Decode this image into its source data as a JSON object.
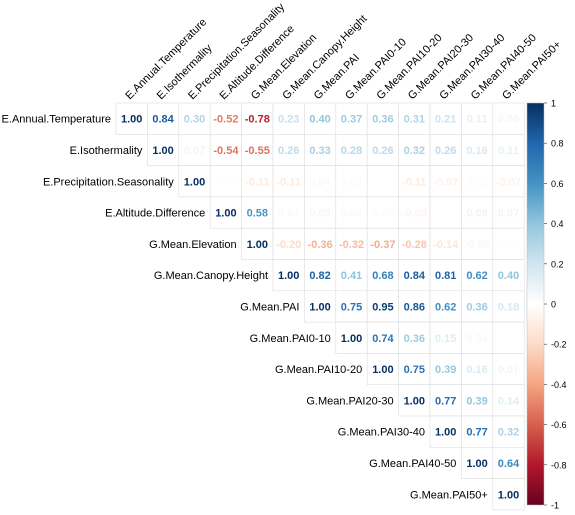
{
  "chart_data": {
    "type": "heatmap",
    "subtype": "upper-triangular correlation matrix",
    "title": "",
    "variables": [
      "E.Annual.Temperature",
      "E.Isothermality",
      "E.Precipitation.Seasonality",
      "E.Altitude.Difference",
      "G.Mean.Elevation",
      "G.Mean.Canopy.Height",
      "G.Mean.PAI",
      "G.Mean.PAI0-10",
      "G.Mean.PAI10-20",
      "G.Mean.PAI20-30",
      "G.Mean.PAI30-40",
      "G.Mean.PAI40-50",
      "G.Mean.PAI50+"
    ],
    "matrix": [
      [
        1.0,
        0.84,
        0.3,
        -0.52,
        -0.78,
        0.23,
        0.4,
        0.37,
        0.36,
        0.31,
        0.21,
        0.11,
        0.06
      ],
      [
        null,
        1.0,
        0.07,
        -0.54,
        -0.55,
        0.26,
        0.33,
        0.28,
        0.26,
        0.32,
        0.26,
        0.16,
        0.11
      ],
      [
        null,
        null,
        1.0,
        0.01,
        -0.11,
        -0.11,
        0.04,
        0.03,
        0.0,
        -0.11,
        -0.07,
        0.02,
        -0.07
      ],
      [
        null,
        null,
        null,
        1.0,
        0.58,
        0.04,
        0.05,
        0.04,
        0.03,
        -0.06,
        0.0,
        0.08,
        0.07
      ],
      [
        null,
        null,
        null,
        null,
        1.0,
        -0.2,
        -0.36,
        -0.32,
        -0.37,
        -0.28,
        -0.14,
        -0.05,
        -0.01
      ],
      [
        null,
        null,
        null,
        null,
        null,
        1.0,
        0.82,
        0.41,
        0.68,
        0.84,
        0.81,
        0.62,
        0.4
      ],
      [
        null,
        null,
        null,
        null,
        null,
        null,
        1.0,
        0.75,
        0.95,
        0.86,
        0.62,
        0.36,
        0.18
      ],
      [
        null,
        null,
        null,
        null,
        null,
        null,
        null,
        1.0,
        0.74,
        0.36,
        0.15,
        0.04,
        0.0
      ],
      [
        null,
        null,
        null,
        null,
        null,
        null,
        null,
        null,
        1.0,
        0.75,
        0.39,
        0.16,
        0.07
      ],
      [
        null,
        null,
        null,
        null,
        null,
        null,
        null,
        null,
        null,
        1.0,
        0.77,
        0.39,
        0.14
      ],
      [
        null,
        null,
        null,
        null,
        null,
        null,
        null,
        null,
        null,
        null,
        1.0,
        0.77,
        0.32
      ],
      [
        null,
        null,
        null,
        null,
        null,
        null,
        null,
        null,
        null,
        null,
        null,
        1.0,
        0.64
      ],
      [
        null,
        null,
        null,
        null,
        null,
        null,
        null,
        null,
        null,
        null,
        null,
        null,
        1.0
      ]
    ],
    "value_range": [
      -1,
      1
    ],
    "grid": true,
    "colorbar": {
      "placement": "right",
      "ticks": [
        1,
        0.8,
        0.6,
        0.4,
        0.2,
        0,
        -0.2,
        -0.4,
        -0.6,
        -0.8,
        -1
      ],
      "tick_labels": [
        "1",
        "0.8",
        "0.6",
        "0.4",
        "0.2",
        "0",
        "-0.2",
        "-0.4",
        "-0.6",
        "-0.8",
        "-1"
      ],
      "colors": {
        "negative_end": "#67001f",
        "negative_mid": "#d6604d",
        "neutral": "#ffffff",
        "positive_mid": "#4393c3",
        "positive_end": "#053061"
      }
    }
  }
}
